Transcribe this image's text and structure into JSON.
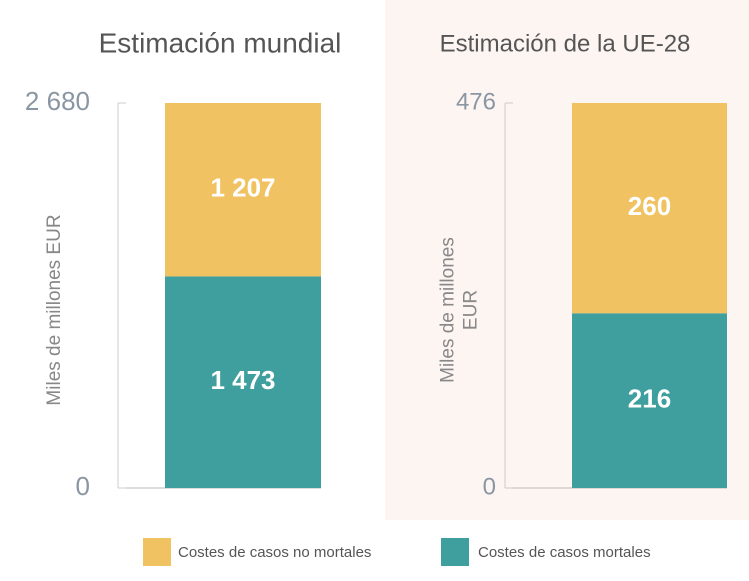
{
  "chart_data": [
    {
      "type": "stacked-bar",
      "title": "Estimación mundial",
      "ylabel": "Miles de millones EUR",
      "categories": [
        null
      ],
      "ylim": [
        0,
        2680
      ],
      "yticks": [
        0,
        {
          "value": 2680,
          "label": "2 680"
        }
      ],
      "series": [
        {
          "name": "Costes de casos mortales",
          "color": "#3f9e9e",
          "values": [
            1473
          ],
          "value_labels": [
            "1 473"
          ]
        },
        {
          "name": "Costes de casos no mortales",
          "color": "#f0c262",
          "values": [
            1207
          ],
          "value_labels": [
            "1 207"
          ]
        }
      ]
    },
    {
      "type": "stacked-bar",
      "title": "Estimación de la UE-28",
      "ylabel": "Miles de millones EUR",
      "categories": [
        null
      ],
      "ylim": [
        0,
        476
      ],
      "yticks": [
        0,
        476
      ],
      "series": [
        {
          "name": "Costes de casos mortales",
          "color": "#3f9e9e",
          "values": [
            216
          ]
        },
        {
          "name": "Costes de casos no mortales",
          "color": "#f0c262",
          "values": [
            260
          ]
        }
      ]
    }
  ]
}
